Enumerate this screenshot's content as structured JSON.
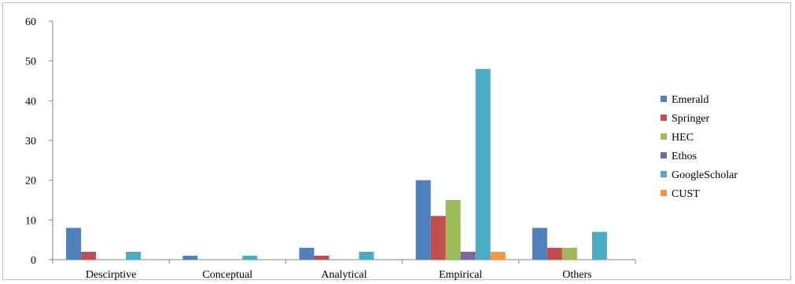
{
  "chart_data": {
    "type": "bar",
    "categories": [
      "Descirptive",
      "Conceptual",
      "Analytical",
      "Empirical",
      "Others"
    ],
    "series": [
      {
        "name": "Emerald",
        "color": "#4f81bd",
        "values": [
          8,
          1,
          3,
          20,
          8
        ]
      },
      {
        "name": "Springer",
        "color": "#c0504d",
        "values": [
          2,
          0,
          1,
          11,
          3
        ]
      },
      {
        "name": "HEC",
        "color": "#9bbb59",
        "values": [
          0,
          0,
          0,
          15,
          3
        ]
      },
      {
        "name": "Ethos",
        "color": "#8064a2",
        "values": [
          0,
          0,
          0,
          2,
          0
        ]
      },
      {
        "name": "GoogleScholar",
        "color": "#4bacc6",
        "values": [
          2,
          1,
          2,
          48,
          7
        ]
      },
      {
        "name": "CUST",
        "color": "#f79646",
        "values": [
          0,
          0,
          0,
          2,
          0
        ]
      }
    ],
    "ylim": [
      0,
      60
    ],
    "yticks": [
      "0",
      "10",
      "20",
      "30",
      "40",
      "50",
      "60"
    ],
    "grid": false,
    "legend": "right",
    "title": "",
    "xlabel": "",
    "ylabel": ""
  }
}
